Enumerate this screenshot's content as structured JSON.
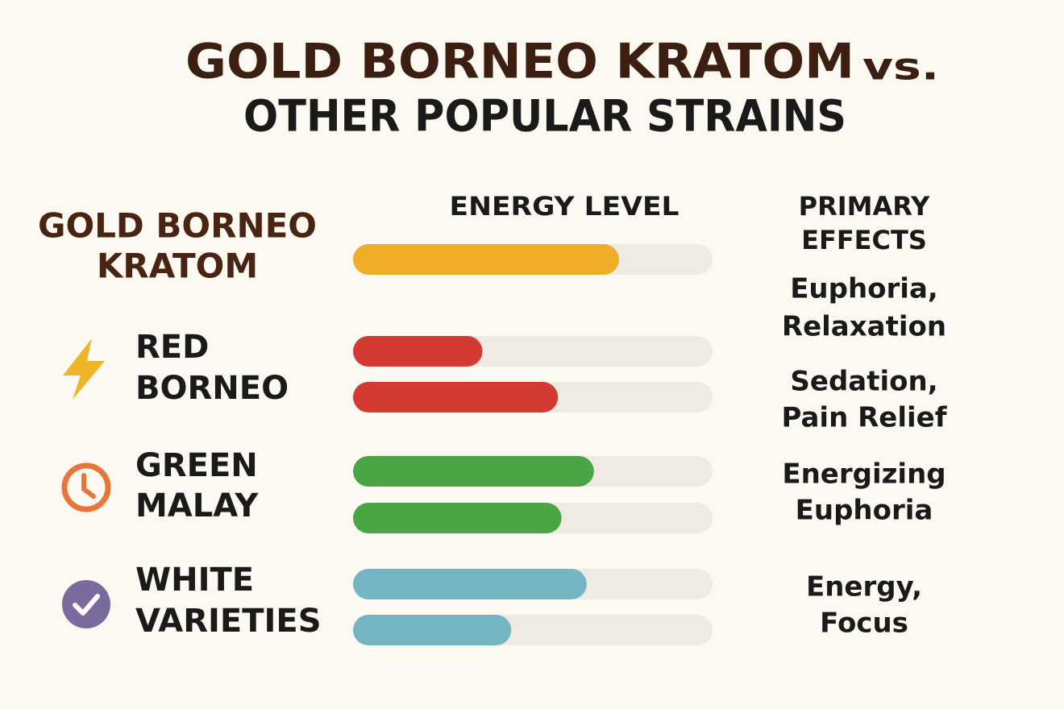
{
  "chart_data": {
    "type": "bar",
    "title": "GOLD BORNEO KRATOM",
    "title_suffix": "vs.",
    "subtitle": "OTHER POPULAR STRAINS",
    "bar_header": "ENERGY LEVEL",
    "effects_header": [
      "PRIMARY",
      "EFFECTS"
    ],
    "xlim": [
      0,
      100
    ],
    "track_color": "#efebe3",
    "strains": [
      {
        "name": [
          "GOLD BORNEO",
          "KRATOM"
        ],
        "color": "#f0ad28",
        "values": [
          74
        ],
        "effects": [
          "Euphoria,",
          "Relaxation"
        ]
      },
      {
        "name": [
          "RED",
          "BORNEO"
        ],
        "color": "#d33a31",
        "values": [
          36,
          57
        ],
        "effects": [
          "Sedation,",
          "Pain Relief"
        ]
      },
      {
        "name": [
          "GREEN",
          "MALAY"
        ],
        "color": "#4aa544",
        "values": [
          67,
          58
        ],
        "effects": [
          "Energizing",
          "Euphoria"
        ]
      },
      {
        "name": [
          "WHITE",
          "VARIETIES"
        ],
        "color": "#74b5c4",
        "values": [
          65,
          44
        ],
        "effects": [
          "Energy,",
          "Focus"
        ]
      }
    ]
  }
}
